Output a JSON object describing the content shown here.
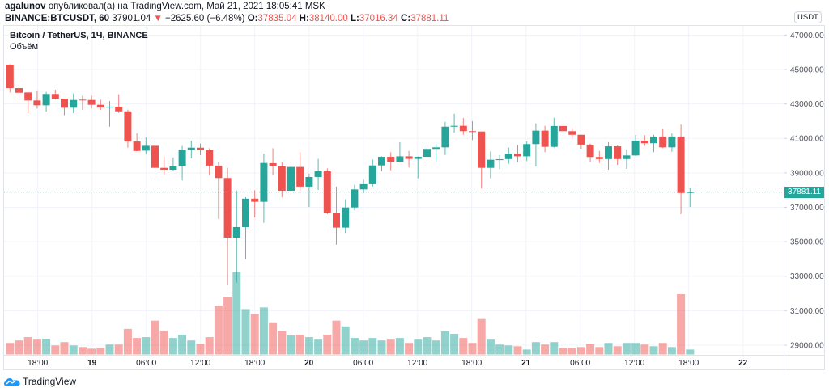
{
  "header": {
    "author": "agalunov",
    "published_text": "опубликовал(а) на TradingView.com, Май 21, 2021 18:05:41 MSK",
    "symbol": "BINANCE:BTCUSDT, 60",
    "last": "37901.04",
    "change": "−2625.60 (−6.48%)",
    "direction_icon": "triangle-down-icon",
    "o_label": "O:",
    "o": "37835.04",
    "h_label": "H:",
    "h": "38140.00",
    "l_label": "L:",
    "l": "37016.34",
    "c_label": "C:",
    "c": "37881.11"
  },
  "legend": {
    "title": "Bitcoin / TetherUS, 1Ч, BINANCE",
    "volume_label": "Объём"
  },
  "currency_badge": "USDT",
  "last_price_label": "37881.11",
  "branding": "TradingView",
  "colors": {
    "up": "#26a69a",
    "down": "#ef5350",
    "grid": "#f0f3fa"
  },
  "chart_data": {
    "type": "candlestick",
    "interval": "1H",
    "y_ticks": [
      "47000.00",
      "45000.00",
      "43000.00",
      "41000.00",
      "39000.00",
      "37000.00",
      "35000.00",
      "33000.00",
      "31000.00",
      "29000.00"
    ],
    "y_tick_values": [
      47000,
      45000,
      43000,
      41000,
      39000,
      37000,
      35000,
      33000,
      31000,
      29000
    ],
    "x_ticks": [
      "18:00",
      "19",
      "06:00",
      "12:00",
      "18:00",
      "20",
      "06:00",
      "12:00",
      "18:00",
      "21",
      "06:00",
      "12:00",
      "18:00",
      "22"
    ],
    "x_ticks_bold": [
      false,
      true,
      false,
      false,
      false,
      true,
      false,
      false,
      false,
      true,
      false,
      false,
      false,
      true
    ],
    "grid": true,
    "last_price": 37881.11,
    "ohlc": [
      [
        45280,
        45310,
        43670,
        43920
      ],
      [
        43920,
        44110,
        43170,
        43650
      ],
      [
        43670,
        43670,
        42470,
        43200
      ],
      [
        43200,
        43790,
        42730,
        42920
      ],
      [
        42920,
        43700,
        42550,
        43580
      ],
      [
        43580,
        43830,
        43250,
        43300
      ],
      [
        43310,
        43310,
        42340,
        42780
      ],
      [
        42780,
        43610,
        42470,
        43230
      ],
      [
        43250,
        43480,
        42650,
        43220
      ],
      [
        43230,
        43480,
        42730,
        42950
      ],
      [
        42950,
        43250,
        42650,
        42790
      ],
      [
        42790,
        43170,
        41680,
        42840
      ],
      [
        42840,
        43560,
        42470,
        42570
      ],
      [
        42570,
        42670,
        40460,
        40820
      ],
      [
        40820,
        41290,
        40250,
        40270
      ],
      [
        40290,
        41060,
        40090,
        40570
      ],
      [
        40570,
        40820,
        38590,
        39290
      ],
      [
        39290,
        39930,
        38910,
        39180
      ],
      [
        39180,
        39890,
        39100,
        39370
      ],
      [
        39370,
        40560,
        38560,
        40350
      ],
      [
        40350,
        40870,
        39840,
        40460
      ],
      [
        40460,
        40700,
        40030,
        40310
      ],
      [
        40310,
        40430,
        38870,
        39420
      ],
      [
        39420,
        39650,
        36330,
        38700
      ],
      [
        38700,
        39290,
        32500,
        35240
      ],
      [
        35240,
        37980,
        32610,
        35850
      ],
      [
        35850,
        37590,
        33990,
        37500
      ],
      [
        37500,
        37990,
        36410,
        37320
      ],
      [
        37320,
        40120,
        36100,
        39570
      ],
      [
        39560,
        40430,
        38870,
        39370
      ],
      [
        39370,
        39620,
        37570,
        37960
      ],
      [
        37960,
        39500,
        37690,
        39340
      ],
      [
        39340,
        40200,
        37960,
        38200
      ],
      [
        38200,
        38950,
        37020,
        38760
      ],
      [
        38760,
        39810,
        38010,
        39090
      ],
      [
        39090,
        39260,
        36600,
        36680
      ],
      [
        36680,
        38200,
        34830,
        35820
      ],
      [
        35820,
        37460,
        35510,
        36990
      ],
      [
        36990,
        38300,
        36830,
        38040
      ],
      [
        38040,
        38600,
        37820,
        38340
      ],
      [
        38340,
        39780,
        38200,
        39430
      ],
      [
        39430,
        39960,
        39100,
        39930
      ],
      [
        39930,
        40200,
        39150,
        39650
      ],
      [
        39650,
        40780,
        39600,
        39960
      ],
      [
        39960,
        40270,
        39310,
        39810
      ],
      [
        39810,
        39960,
        38680,
        39930
      ],
      [
        39930,
        40460,
        39460,
        40390
      ],
      [
        40390,
        40670,
        39650,
        40480
      ],
      [
        40480,
        41960,
        40040,
        41680
      ],
      [
        41680,
        42430,
        41340,
        41730
      ],
      [
        41730,
        42180,
        41210,
        41420
      ],
      [
        41420,
        42000,
        40900,
        41400
      ],
      [
        41400,
        41400,
        38090,
        39290
      ],
      [
        39290,
        40250,
        38680,
        39760
      ],
      [
        39740,
        40030,
        39210,
        39790
      ],
      [
        39800,
        40460,
        39520,
        40110
      ],
      [
        40110,
        40620,
        39620,
        39960
      ],
      [
        39960,
        40820,
        39680,
        40670
      ],
      [
        40670,
        41870,
        39370,
        41450
      ],
      [
        41450,
        41730,
        40200,
        40510
      ],
      [
        40510,
        42200,
        40460,
        41720
      ],
      [
        41720,
        41810,
        41250,
        41420
      ],
      [
        41420,
        41610,
        41030,
        41210
      ],
      [
        41210,
        41210,
        40400,
        40640
      ],
      [
        40640,
        40700,
        39650,
        39920
      ],
      [
        39920,
        40270,
        39570,
        39800
      ],
      [
        39800,
        40780,
        39180,
        40540
      ],
      [
        40540,
        40620,
        39460,
        39800
      ],
      [
        39800,
        40350,
        39230,
        40010
      ],
      [
        40010,
        41190,
        39990,
        40870
      ],
      [
        40870,
        41190,
        40560,
        40720
      ],
      [
        40720,
        41210,
        40200,
        41110
      ],
      [
        41110,
        41560,
        40430,
        40480
      ],
      [
        40480,
        41290,
        40230,
        41110
      ],
      [
        41110,
        41800,
        36600,
        37830
      ],
      [
        37835.04,
        38140.0,
        37016.34,
        37881.11
      ]
    ],
    "volume_relative_pct_of_max": [
      14,
      17,
      21,
      18,
      19,
      11,
      15,
      11,
      9,
      7,
      8,
      12,
      12,
      31,
      20,
      21,
      41,
      29,
      20,
      24,
      17,
      13,
      21,
      59,
      70,
      100,
      55,
      49,
      57,
      38,
      28,
      23,
      24,
      21,
      18,
      24,
      41,
      34,
      20,
      17,
      20,
      17,
      18,
      20,
      14,
      18,
      21,
      17,
      28,
      25,
      20,
      14,
      43,
      18,
      12,
      11,
      10,
      6,
      15,
      12,
      15,
      8,
      8,
      9,
      13,
      9,
      14,
      10,
      14,
      14,
      12,
      10,
      14,
      9,
      73,
      6
    ]
  }
}
